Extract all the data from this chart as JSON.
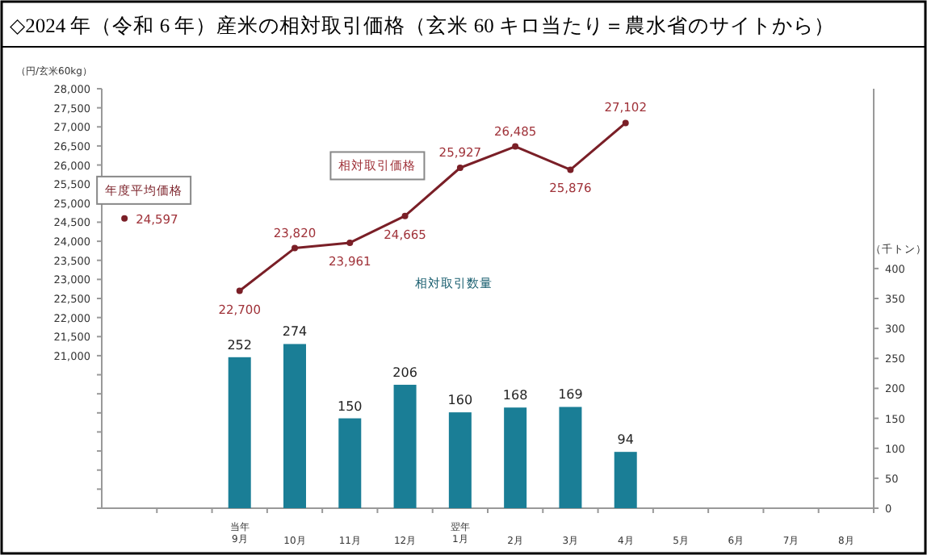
{
  "chart_data": {
    "type": "bar",
    "title": "◇2024 年（令和 6 年）産米の相対取引価格（玄米 60 キロ当たり＝農水省のサイトから）",
    "ylabel": "（円/玄米60kg）",
    "y2label": "（千トン）",
    "categories": [
      null,
      null,
      "当年\n9月",
      "10月",
      "11月",
      "12月",
      "翌年\n1月",
      "2月",
      "3月",
      "4月",
      "5月",
      "6月",
      "7月",
      "8月"
    ],
    "series": [
      {
        "name": "相対取引数量",
        "axis": "y2",
        "color": "#1a7e96",
        "values": [
          null,
          null,
          252,
          274,
          150,
          206,
          160,
          168,
          169,
          94,
          null,
          null,
          null,
          null
        ]
      },
      {
        "name": "相対取引価格",
        "type": "line",
        "color": "#7a1f27",
        "values": [
          null,
          null,
          22700,
          23820,
          23961,
          24665,
          25927,
          26485,
          25876,
          27102,
          null,
          null,
          null,
          null
        ],
        "value_labels": [
          null,
          null,
          "22,700",
          "23,820",
          "23,961",
          "24,665",
          "25,927",
          "26,485",
          "25,876",
          "27,102",
          null,
          null,
          null,
          null
        ]
      },
      {
        "name": "年度平均価格",
        "type": "scatter",
        "color": "#7a1f27",
        "values": [
          24597,
          null,
          null,
          null,
          null,
          null,
          null,
          null,
          null,
          null,
          null,
          null,
          null,
          null
        ],
        "value_labels": [
          "24,597",
          null,
          null,
          null,
          null,
          null,
          null,
          null,
          null,
          null,
          null,
          null,
          null,
          null
        ]
      }
    ],
    "ylim": [
      17000,
      28000
    ],
    "yticks": [
      {
        "value": 17000,
        "label": null
      },
      {
        "value": 17500,
        "label": null
      },
      {
        "value": 18000,
        "label": null
      },
      {
        "value": 18500,
        "label": null
      },
      {
        "value": 19000,
        "label": null
      },
      {
        "value": 19500,
        "label": null
      },
      {
        "value": 20000,
        "label": null
      },
      {
        "value": 20500,
        "label": null
      },
      {
        "value": 21000,
        "label": "21,000"
      },
      {
        "value": 21500,
        "label": "21,500"
      },
      {
        "value": 22000,
        "label": "22,000"
      },
      {
        "value": 22500,
        "label": "22,500"
      },
      {
        "value": 23000,
        "label": "23,000"
      },
      {
        "value": 23500,
        "label": "23,500"
      },
      {
        "value": 24000,
        "label": "24,000"
      },
      {
        "value": 24500,
        "label": "24,500"
      },
      {
        "value": 25000,
        "label": "25,000"
      },
      {
        "value": 25500,
        "label": "25,500"
      },
      {
        "value": 26000,
        "label": "26,000"
      },
      {
        "value": 26500,
        "label": "26,500"
      },
      {
        "value": 27000,
        "label": "27,000"
      },
      {
        "value": 27500,
        "label": "27,500"
      },
      {
        "value": 28000,
        "label": "28,000"
      }
    ],
    "y2lim": [
      0,
      700
    ],
    "y2ticks": [
      0,
      50,
      100,
      150,
      200,
      250,
      300,
      350,
      400
    ],
    "data_labels": true,
    "legend": false,
    "marker": "circle",
    "grid": false
  }
}
